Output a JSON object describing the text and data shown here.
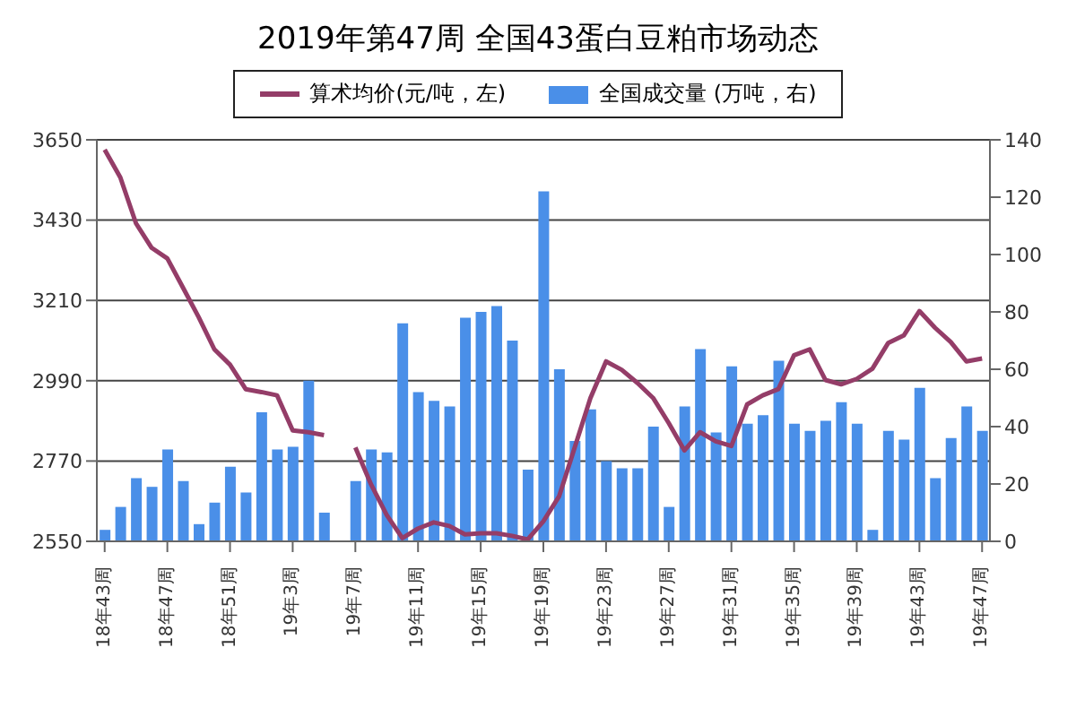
{
  "chart_data": {
    "type": "bar",
    "title": "2019年第47周 全国43蛋白豆粕市场动态",
    "categories": [
      "18年43周",
      null,
      null,
      null,
      "18年47周",
      null,
      null,
      null,
      "18年51周",
      null,
      null,
      null,
      "19年3周",
      null,
      null,
      null,
      "19年7周",
      null,
      null,
      null,
      "19年11周",
      null,
      null,
      null,
      "19年15周",
      null,
      null,
      null,
      "19年19周",
      null,
      null,
      null,
      "19年23周",
      null,
      null,
      null,
      "19年27周",
      null,
      null,
      null,
      "19年31周",
      null,
      null,
      null,
      "19年35周",
      null,
      null,
      null,
      "19年39周",
      null,
      null,
      null,
      "19年43周",
      null,
      null,
      null,
      "19年47周"
    ],
    "series": [
      {
        "name": "算术均价(元/吨，左)",
        "type": "line",
        "color": "#943d68",
        "values": [
          3623,
          3547,
          3421,
          3354,
          3325,
          3245,
          3164,
          3076,
          3034,
          2967,
          2959,
          2950,
          2854,
          2849,
          2841,
          null,
          2807,
          2706,
          2622,
          2559,
          2585,
          2602,
          2592,
          2569,
          2572,
          2572,
          2565,
          2555,
          2605,
          2673,
          2807,
          2942,
          3043,
          3020,
          2984,
          2943,
          2874,
          2799,
          2849,
          2824,
          2811,
          2925,
          2950,
          2967,
          3060,
          3076,
          2992,
          2980,
          2995,
          3023,
          3093,
          3114,
          3181,
          3135,
          3096,
          3043,
          3051
        ]
      },
      {
        "name": "全国成交量 (万吨，右)",
        "axis": "y2",
        "color": "#4a8fe8",
        "values": [
          4,
          12,
          22,
          19,
          32,
          21,
          6,
          13.5,
          26,
          17,
          45,
          32,
          33,
          56,
          10,
          null,
          21,
          32,
          31,
          76,
          52,
          49,
          47,
          78,
          80,
          82,
          70,
          25,
          122,
          60,
          35,
          46,
          28,
          25.5,
          25.5,
          40,
          12,
          47,
          67,
          38,
          61,
          41,
          44,
          63,
          41,
          38.5,
          42,
          48.5,
          41,
          4,
          38.5,
          35.5,
          53.5,
          22,
          36,
          47,
          38.5
        ]
      }
    ],
    "ylim": [
      2550,
      3650
    ],
    "yticks": [
      2550,
      2770,
      2990,
      3210,
      3430,
      3650
    ],
    "y2lim": [
      0,
      140
    ],
    "y2ticks": [
      0,
      20,
      40,
      60,
      80,
      100,
      120,
      140
    ],
    "grid": "y",
    "legend": "top"
  }
}
